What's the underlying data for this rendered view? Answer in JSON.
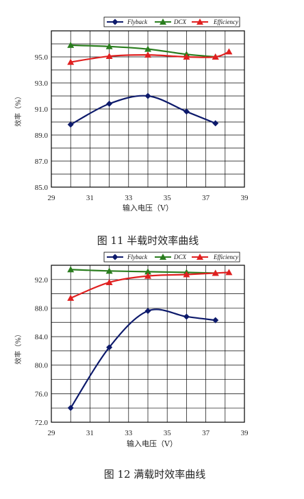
{
  "chart_data": [
    {
      "type": "line",
      "caption": "图 11   半载时效率曲线",
      "xlabel": "输入电压（V）",
      "ylabel": "效率（%）",
      "xlim": [
        29,
        39
      ],
      "ylim": [
        85,
        97
      ],
      "xticks": [
        29,
        31,
        33,
        35,
        37,
        39
      ],
      "yticks": [
        85.0,
        87.0,
        89.0,
        91.0,
        93.0,
        95.0
      ],
      "ytick_labels": [
        "85.0",
        "87.0",
        "89.0",
        "91.0",
        "93.0",
        "95.0"
      ],
      "grid": true,
      "legend_position": "top-right",
      "series": [
        {
          "name": "Flyback",
          "color": "#0d1a6b",
          "marker": "diamond",
          "x": [
            30,
            32,
            34,
            36,
            37.5
          ],
          "y": [
            89.8,
            91.4,
            92.0,
            90.8,
            89.9
          ]
        },
        {
          "name": "DCX",
          "color": "#2a7d1e",
          "marker": "triangle",
          "x": [
            30,
            32,
            34,
            36,
            37.5
          ],
          "y": [
            95.9,
            95.8,
            95.6,
            95.2,
            95.0
          ]
        },
        {
          "name": "Efficiency",
          "color": "#e02020",
          "marker": "triangle",
          "x": [
            30,
            32,
            34,
            36,
            37.5,
            38.2
          ],
          "y": [
            94.6,
            95.05,
            95.15,
            95.0,
            95.0,
            95.4
          ]
        }
      ]
    },
    {
      "type": "line",
      "caption": "图 12   满载时效率曲线",
      "xlabel": "输入电压（V）",
      "ylabel": "效率（%）",
      "xlim": [
        29,
        39
      ],
      "ylim": [
        72,
        94
      ],
      "xticks": [
        29,
        31,
        33,
        35,
        37,
        39
      ],
      "yticks": [
        72.0,
        76.0,
        80.0,
        84.0,
        88.0,
        92.0
      ],
      "ytick_labels": [
        "72.0",
        "76.0",
        "80.0",
        "84.0",
        "88.0",
        "92.0"
      ],
      "grid": true,
      "legend_position": "top-right",
      "series": [
        {
          "name": "Flyback",
          "color": "#0d1a6b",
          "marker": "diamond",
          "x": [
            30,
            32,
            34,
            36,
            37.5
          ],
          "y": [
            74.0,
            82.5,
            87.6,
            86.8,
            86.3
          ]
        },
        {
          "name": "DCX",
          "color": "#2a7d1e",
          "marker": "triangle",
          "x": [
            30,
            32,
            34,
            36,
            37.5
          ],
          "y": [
            93.4,
            93.2,
            93.1,
            93.0,
            92.9
          ]
        },
        {
          "name": "Efficiency",
          "color": "#e02020",
          "marker": "triangle",
          "x": [
            30,
            32,
            34,
            36,
            37.5,
            38.2
          ],
          "y": [
            89.4,
            91.6,
            92.5,
            92.7,
            92.9,
            93.0
          ]
        }
      ]
    }
  ]
}
